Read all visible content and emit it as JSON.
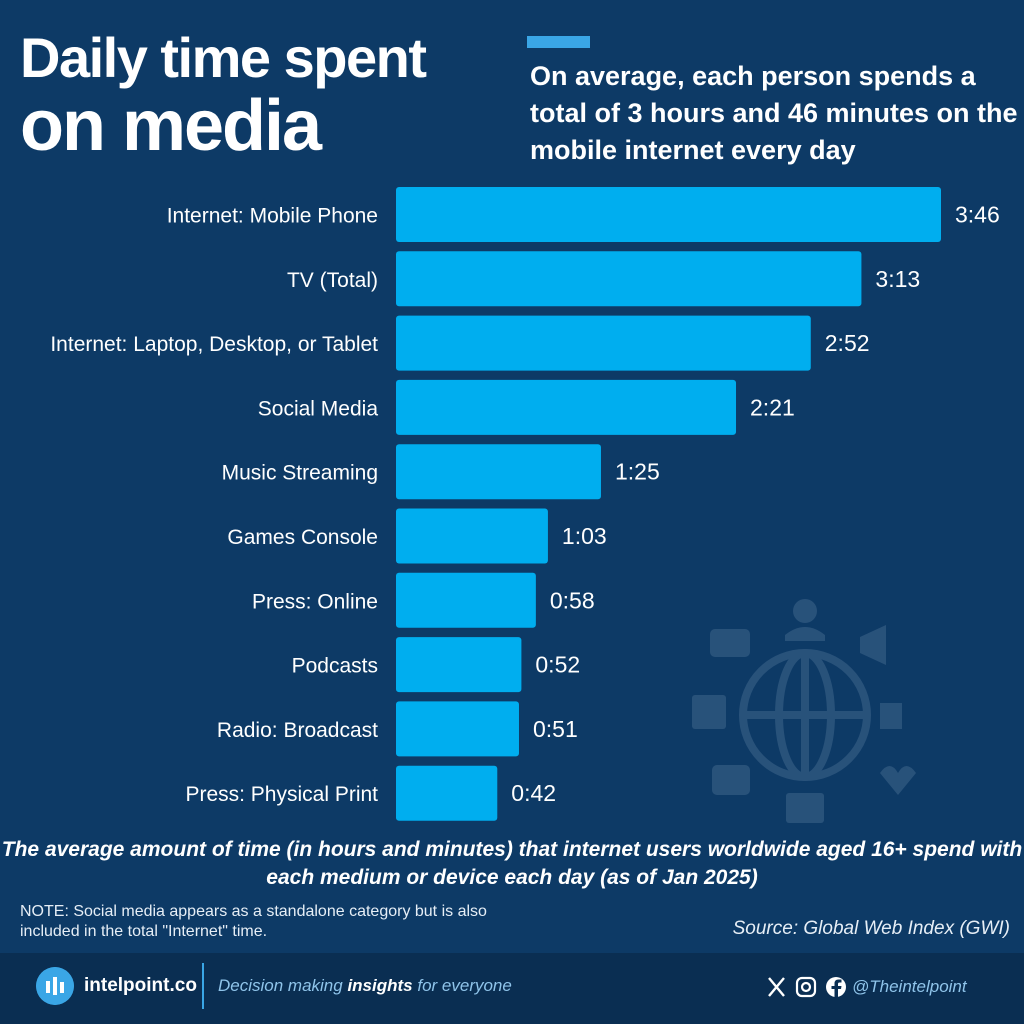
{
  "header": {
    "title_line1": "Daily time spent",
    "title_line2": "on media",
    "subtitle": "On average, each person spends a total of 3 hours and 46 minutes on the mobile internet every day"
  },
  "chart_data": {
    "type": "bar",
    "orientation": "horizontal",
    "categories": [
      "Internet: Mobile Phone",
      "TV (Total)",
      "Internet: Laptop, Desktop, or Tablet",
      "Social Media",
      "Music Streaming",
      "Games Console",
      "Press: Online",
      "Podcasts",
      "Radio: Broadcast",
      "Press: Physical Print"
    ],
    "values_minutes": [
      226,
      193,
      172,
      141,
      85,
      63,
      58,
      52,
      51,
      42
    ],
    "labels": [
      "3:46",
      "3:13",
      "2:52",
      "2:21",
      "1:25",
      "1:03",
      "0:58",
      "0:52",
      "0:51",
      "0:42"
    ],
    "bar_color": "#00aeef",
    "grid": false,
    "legend": "none"
  },
  "caption": "The average amount of time (in hours and minutes) that internet users worldwide aged 16+ spend with each medium or device each day (as of Jan 2025)",
  "note": "NOTE: Social media appears as a standalone category but is also included in the total \"Internet\" time.",
  "source": "Source: Global Web Index (GWI)",
  "footer": {
    "brand": "intelpoint.co",
    "tagline_pre": "Decision making ",
    "tagline_bold": "insights",
    "tagline_post": " for everyone",
    "handle": "@Theintelpoint",
    "icons": [
      "x-icon",
      "instagram-icon",
      "facebook-icon"
    ]
  },
  "colors": {
    "background": "#0d3a66",
    "accent": "#3aa6e6",
    "bar": "#00aeef",
    "footer": "#0a2e52"
  }
}
